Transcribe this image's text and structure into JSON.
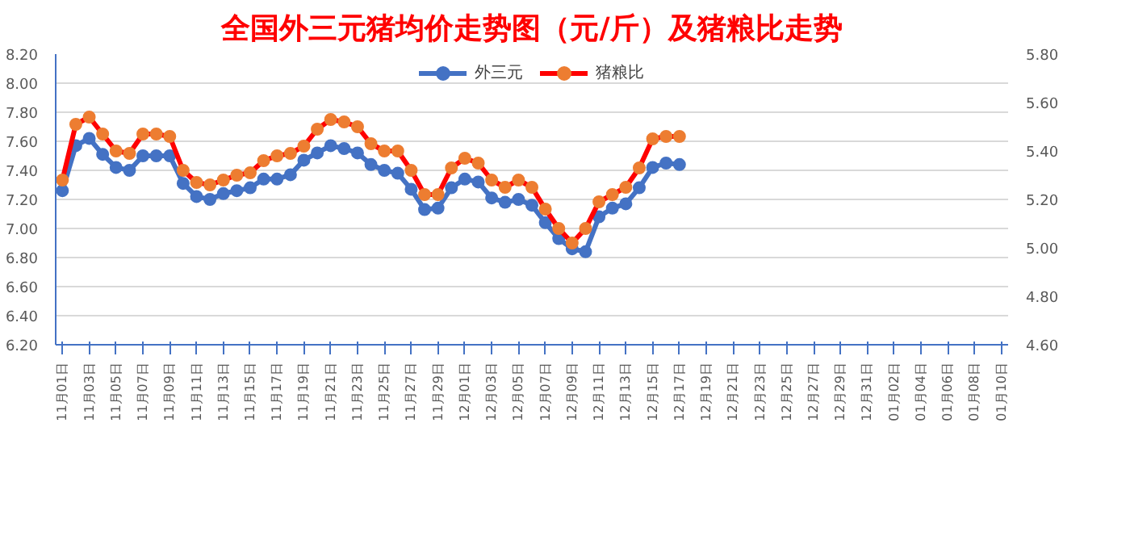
{
  "chart_data": {
    "type": "line",
    "title": "全国外三元猪均价走势图（元/斤）及猪粮比走势",
    "categories": [
      "11月01日",
      null,
      "11月03日",
      null,
      "11月05日",
      null,
      "11月07日",
      null,
      "11月09日",
      null,
      "11月11日",
      null,
      "11月13日",
      null,
      "11月15日",
      null,
      "11月17日",
      null,
      "11月19日",
      null,
      "11月21日",
      null,
      "11月23日",
      null,
      "11月25日",
      null,
      "11月27日",
      null,
      "11月29日",
      null,
      "12月01日",
      null,
      "12月03日",
      null,
      "12月05日",
      null,
      "12月07日",
      null,
      "12月09日",
      null,
      "12月11日",
      null,
      "12月13日",
      null,
      "12月15日",
      null,
      "12月17日",
      null,
      "12月19日",
      null,
      "12月21日",
      null,
      "12月23日",
      null,
      "12月25日",
      null,
      "12月27日",
      null,
      "12月29日",
      null,
      "12月31日",
      null,
      "01月02日",
      null,
      "01月04日",
      null,
      "01月06日",
      null,
      "01月08日",
      null,
      "01月10日"
    ],
    "series": [
      {
        "name": "外三元",
        "color": "#4472c4",
        "values": [
          7.26,
          7.57,
          7.62,
          7.51,
          7.42,
          7.4,
          7.5,
          7.5,
          7.5,
          7.31,
          7.22,
          7.2,
          7.24,
          7.26,
          7.28,
          7.34,
          7.34,
          7.37,
          7.47,
          7.52,
          7.57,
          7.55,
          7.52,
          7.44,
          7.4,
          7.38,
          7.27,
          7.13,
          7.14,
          7.28,
          7.34,
          7.32,
          7.21,
          7.18,
          7.2,
          7.16,
          7.04,
          6.93,
          6.86,
          6.84,
          7.08,
          7.14,
          7.17,
          7.28,
          7.42,
          7.45,
          7.44,
          null,
          null,
          null,
          null,
          null,
          null,
          null,
          null,
          null,
          null,
          null,
          null,
          null,
          null,
          null,
          null,
          null,
          null,
          null,
          null,
          null,
          null,
          null,
          null
        ]
      },
      {
        "name": "猪粮比",
        "axis": "y2",
        "color": "#ff0000",
        "colors": [
          "#ed7d31",
          "#ed7d31",
          "#ed7d31",
          "#ed7d31",
          "#ed7d31",
          "#ed7d31",
          "#ed7d31",
          "#ed7d31",
          "#ed7d31",
          "#ed7d31",
          "#ed7d31",
          "#ed7d31",
          "#ed7d31",
          "#ed7d31",
          "#ed7d31",
          "#ed7d31",
          "#ed7d31",
          "#ed7d31",
          "#ed7d31",
          "#ed7d31",
          "#ed7d31",
          "#ed7d31",
          "#ed7d31",
          "#ed7d31",
          "#ed7d31",
          "#ed7d31",
          "#ed7d31",
          "#ed7d31",
          "#ed7d31",
          "#ed7d31",
          "#ed7d31",
          "#ed7d31",
          "#ed7d31",
          "#ed7d31",
          "#ed7d31",
          "#ed7d31",
          "#ed7d31",
          "#ed7d31",
          "#ed7d31",
          "#ed7d31",
          "#ed7d31",
          "#ed7d31",
          "#ed7d31",
          "#ed7d31",
          "#ed7d31",
          "#ed7d31",
          "#ed7d31",
          null,
          null,
          null,
          null,
          null,
          null,
          null,
          null,
          null,
          null,
          null,
          null,
          null,
          null,
          null,
          null,
          null,
          null,
          null,
          null,
          null,
          null,
          null,
          null
        ],
        "values": [
          5.28,
          5.51,
          5.54,
          5.47,
          5.4,
          5.39,
          5.47,
          5.47,
          5.46,
          5.32,
          5.27,
          5.26,
          5.28,
          5.3,
          5.31,
          5.36,
          5.38,
          5.39,
          5.42,
          5.49,
          5.53,
          5.52,
          5.5,
          5.43,
          5.4,
          5.4,
          5.32,
          5.22,
          5.22,
          5.33,
          5.37,
          5.35,
          5.28,
          5.25,
          5.28,
          5.25,
          5.16,
          5.08,
          5.02,
          5.08,
          5.19,
          5.22,
          5.25,
          5.33,
          5.45,
          5.46,
          5.46,
          null,
          null,
          null,
          null,
          null,
          null,
          null,
          null,
          null,
          null,
          null,
          null,
          null,
          null,
          null,
          null,
          null,
          null,
          null,
          null,
          null,
          null,
          null,
          null
        ]
      }
    ],
    "ylim": [
      6.2,
      8.2
    ],
    "yticks": [
      {
        "value": 6.2,
        "label": "6.20"
      },
      {
        "value": 6.4,
        "label": "6.40"
      },
      {
        "value": 6.6,
        "label": "6.60"
      },
      {
        "value": 6.8,
        "label": "6.80"
      },
      {
        "value": 7.0,
        "label": "7.00"
      },
      {
        "value": 7.2,
        "label": "7.20"
      },
      {
        "value": 7.4,
        "label": "7.40"
      },
      {
        "value": 7.6,
        "label": "7.60"
      },
      {
        "value": 7.8,
        "label": "7.80"
      },
      {
        "value": 8.0,
        "label": "8.00"
      },
      {
        "value": 8.2,
        "label": "8.20"
      }
    ],
    "y2lim": [
      4.6,
      5.8
    ],
    "y2ticks": [
      {
        "value": 4.6,
        "label": "4.60"
      },
      {
        "value": 4.8,
        "label": "4.80"
      },
      {
        "value": 5.0,
        "label": "5.00"
      },
      {
        "value": 5.2,
        "label": "5.20"
      },
      {
        "value": 5.4,
        "label": "5.40"
      },
      {
        "value": 5.6,
        "label": "5.60"
      },
      {
        "value": 5.8,
        "label": "5.80"
      }
    ],
    "grid": "y",
    "legend": "top",
    "marker": "circle",
    "line_style": "solid"
  }
}
